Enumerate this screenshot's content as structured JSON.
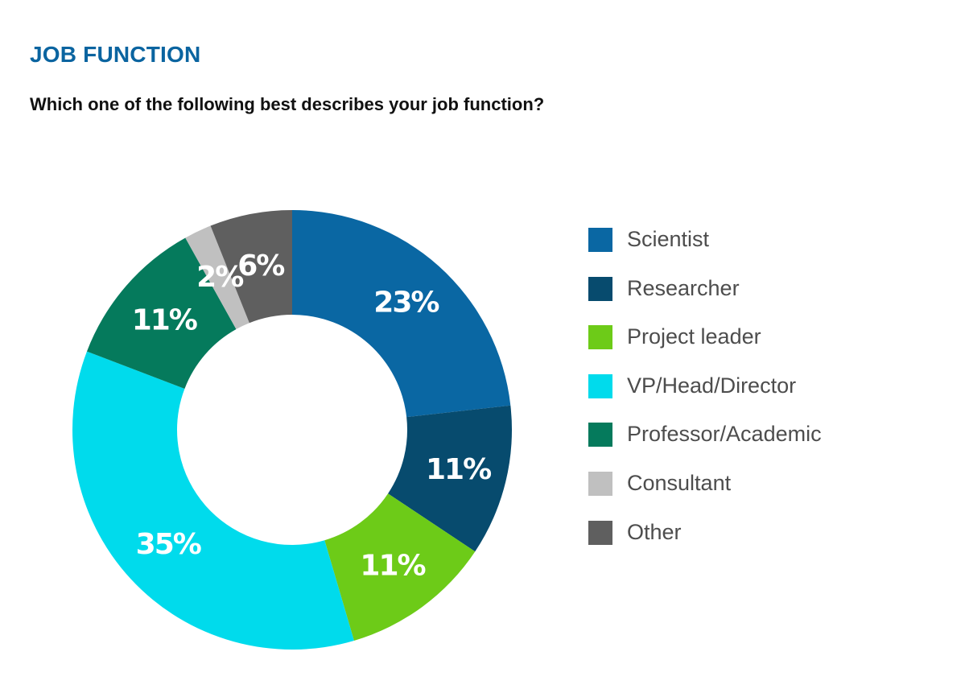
{
  "header": {
    "title": "JOB FUNCTION",
    "subtitle": "Which one of the following best describes your job function?"
  },
  "colors": {
    "title": "#0a64a0",
    "Scientist": "#0a67a3",
    "Researcher": "#074b6e",
    "Project leader": "#6dcb18",
    "VP/Head/Director": "#00dbec",
    "Professor/Academic": "#057a5c",
    "Consultant": "#c0c0c0",
    "Other": "#5f5f5f"
  },
  "chart_data": {
    "type": "pie",
    "donut": true,
    "title": "JOB FUNCTION",
    "subtitle": "Which one of the following best describes your job function?",
    "legend_position": "right",
    "slices": [
      {
        "label": "Scientist",
        "value": 23,
        "value_label": "23%"
      },
      {
        "label": "Researcher",
        "value": 11,
        "value_label": "11%"
      },
      {
        "label": "Project leader",
        "value": 11,
        "value_label": "11%"
      },
      {
        "label": "VP/Head/Director",
        "value": 35,
        "value_label": "35%"
      },
      {
        "label": "Professor/Academic",
        "value": 11,
        "value_label": "11%"
      },
      {
        "label": "Consultant",
        "value": 2,
        "value_label": "2%"
      },
      {
        "label": "Other",
        "value": 6,
        "value_label": "6%"
      }
    ]
  }
}
